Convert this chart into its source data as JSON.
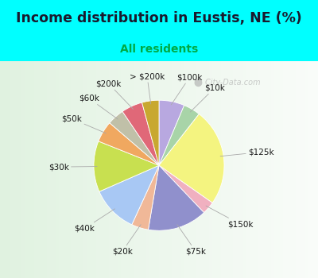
{
  "title": "Income distribution in Eustis, NE (%)",
  "subtitle": "All residents",
  "bg_color": "#00FFFF",
  "chart_bg_gradient": true,
  "labels": [
    "$100k",
    "$10k",
    "$125k",
    "$150k",
    "$75k",
    "$20k",
    "$40k",
    "$30k",
    "$50k",
    "$60k",
    "$200k",
    "> $200k"
  ],
  "sizes": [
    6,
    4,
    23,
    3,
    14,
    4,
    11,
    12,
    5,
    4,
    5,
    4
  ],
  "colors": [
    "#b8a8e0",
    "#a8d4a8",
    "#f4f480",
    "#f0b0c0",
    "#9090cc",
    "#f0b898",
    "#a8c8f4",
    "#c8e050",
    "#f0a860",
    "#c0c0a8",
    "#e06878",
    "#c8a830"
  ],
  "startangle": 90,
  "label_fontsize": 7.5,
  "title_fontsize": 12.5,
  "subtitle_fontsize": 10,
  "title_color": "#1a1a2e",
  "subtitle_color": "#00aa44",
  "label_color": "#1a1a1a",
  "watermark": "City-Data.com",
  "line_color": "#aaaaaa"
}
